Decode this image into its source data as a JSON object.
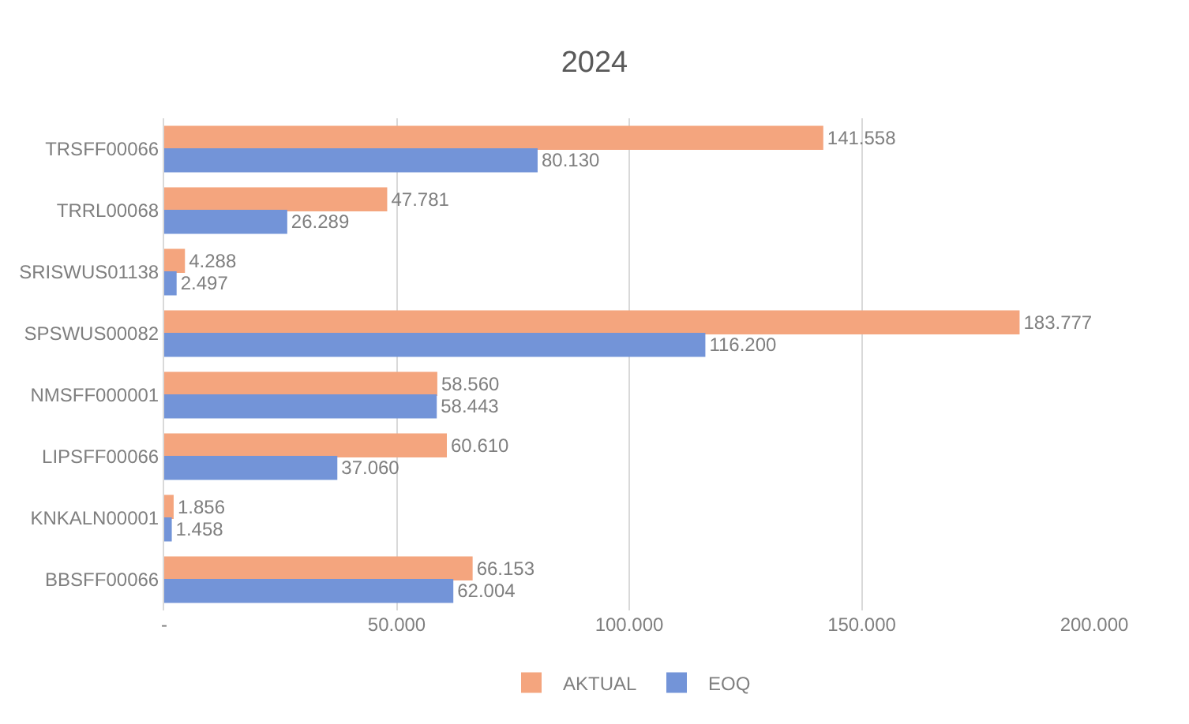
{
  "chart_data": {
    "type": "bar",
    "orientation": "horizontal",
    "title": "2024",
    "categories": [
      "TRSFF00066",
      "TRRL00068",
      "SRISWUS01138",
      "SPSWUS00082",
      "NMSFF000001",
      "LIPSFF00066",
      "KNKALN00001",
      "BBSFF00066"
    ],
    "series": [
      {
        "name": "AKTUAL",
        "color": "#f4a57e",
        "values": [
          141558,
          47781,
          4288,
          183777,
          58560,
          60610,
          1856,
          66153
        ],
        "value_labels": [
          "141.558",
          "47.781",
          "4.288",
          "183.777",
          "58.560",
          "60.610",
          "1.856",
          "66.153"
        ]
      },
      {
        "name": "EOQ",
        "color": "#7394d8",
        "values": [
          80130,
          26289,
          2497,
          116200,
          58443,
          37060,
          1458,
          62004
        ],
        "value_labels": [
          "80.130",
          "26.289",
          "2.497",
          "116.200",
          "58.443",
          "37.060",
          "1.458",
          "62.004"
        ]
      }
    ],
    "xlim": [
      0,
      200000
    ],
    "xticks": [
      {
        "value": 0,
        "label": "-"
      },
      {
        "value": 50000,
        "label": "50.000"
      },
      {
        "value": 100000,
        "label": "100.000"
      },
      {
        "value": 150000,
        "label": "150.000"
      },
      {
        "value": 200000,
        "label": "200.000"
      }
    ],
    "grid": "x",
    "legend": "bottom"
  }
}
